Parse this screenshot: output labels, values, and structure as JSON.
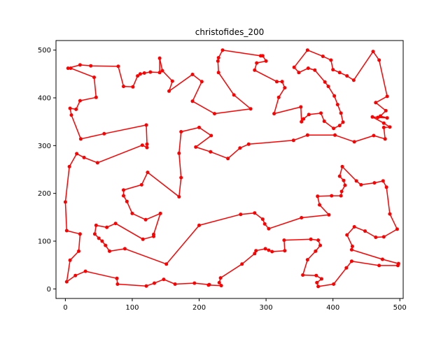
{
  "chart_data": {
    "type": "line",
    "title": "christofides_200",
    "xlabel": "",
    "ylabel": "",
    "xlim": [
      -14,
      505
    ],
    "ylim": [
      -20,
      520
    ],
    "x_ticks": [
      0,
      100,
      200,
      300,
      400,
      500
    ],
    "y_ticks": [
      0,
      100,
      200,
      300,
      400,
      500
    ],
    "grid": false,
    "series": [
      {
        "color": "#ff0000",
        "marker": "circle",
        "closed": true,
        "points": [
          [
            4,
            462
          ],
          [
            22,
            469
          ],
          [
            38,
            467
          ],
          [
            79,
            466
          ],
          [
            87,
            424
          ],
          [
            101,
            423
          ],
          [
            108,
            446
          ],
          [
            112,
            450
          ],
          [
            118,
            452
          ],
          [
            127,
            454
          ],
          [
            141,
            453
          ],
          [
            141,
            483
          ],
          [
            145,
            457
          ],
          [
            160,
            435
          ],
          [
            155,
            414
          ],
          [
            190,
            449
          ],
          [
            204,
            434
          ],
          [
            190,
            393
          ],
          [
            223,
            367
          ],
          [
            277,
            377
          ],
          [
            252,
            406
          ],
          [
            229,
            453
          ],
          [
            228,
            477
          ],
          [
            229,
            484
          ],
          [
            235,
            500
          ],
          [
            292,
            488
          ],
          [
            295,
            488
          ],
          [
            300,
            477
          ],
          [
            286,
            473
          ],
          [
            283,
            458
          ],
          [
            316,
            434
          ],
          [
            324,
            434
          ],
          [
            328,
            421
          ],
          [
            319,
            401
          ],
          [
            312,
            367
          ],
          [
            352,
            381
          ],
          [
            353,
            350
          ],
          [
            356,
            356
          ],
          [
            364,
            365
          ],
          [
            382,
            368
          ],
          [
            387,
            351
          ],
          [
            401,
            336
          ],
          [
            410,
            342
          ],
          [
            415,
            349
          ],
          [
            412,
            368
          ],
          [
            407,
            386
          ],
          [
            402,
            404
          ],
          [
            393,
            424
          ],
          [
            388,
            433
          ],
          [
            373,
            458
          ],
          [
            363,
            462
          ],
          [
            349,
            453
          ],
          [
            342,
            464
          ],
          [
            362,
            500
          ],
          [
            385,
            487
          ],
          [
            397,
            479
          ],
          [
            400,
            459
          ],
          [
            410,
            453
          ],
          [
            421,
            446
          ],
          [
            431,
            437
          ],
          [
            460,
            497
          ],
          [
            469,
            479
          ],
          [
            481,
            403
          ],
          [
            464,
            390
          ],
          [
            479,
            373
          ],
          [
            471,
            362
          ],
          [
            481,
            358
          ],
          [
            467,
            359
          ],
          [
            459,
            360
          ],
          [
            476,
            347
          ],
          [
            485,
            339
          ],
          [
            476,
            338
          ],
          [
            478,
            314
          ],
          [
            461,
            321
          ],
          [
            432,
            308
          ],
          [
            403,
            322
          ],
          [
            362,
            322
          ],
          [
            341,
            311
          ],
          [
            274,
            303
          ],
          [
            261,
            295
          ],
          [
            243,
            273
          ],
          [
            217,
            287
          ],
          [
            195,
            297
          ],
          [
            218,
            321
          ],
          [
            200,
            338
          ],
          [
            173,
            329
          ],
          [
            170,
            284
          ],
          [
            173,
            233
          ],
          [
            170,
            193
          ],
          [
            123,
            244
          ],
          [
            114,
            218
          ],
          [
            87,
            207
          ],
          [
            87,
            195
          ],
          [
            92,
            183
          ],
          [
            100,
            158
          ],
          [
            120,
            145
          ],
          [
            142,
            158
          ],
          [
            132,
            114
          ],
          [
            132,
            110
          ],
          [
            116,
            104
          ],
          [
            75,
            137
          ],
          [
            62,
            129
          ],
          [
            46,
            133
          ],
          [
            44,
            115
          ],
          [
            50,
            106
          ],
          [
            55,
            100
          ],
          [
            60,
            91
          ],
          [
            66,
            79
          ],
          [
            89,
            84
          ],
          [
            151,
            52
          ],
          [
            200,
            133
          ],
          [
            262,
            156
          ],
          [
            283,
            159
          ],
          [
            295,
            146
          ],
          [
            298,
            136
          ],
          [
            304,
            126
          ],
          [
            353,
            149
          ],
          [
            394,
            155
          ],
          [
            380,
            176
          ],
          [
            377,
            194
          ],
          [
            398,
            195
          ],
          [
            412,
            195
          ],
          [
            413,
            204
          ],
          [
            418,
            217
          ],
          [
            416,
            227
          ],
          [
            410,
            236
          ],
          [
            414,
            256
          ],
          [
            435,
            226
          ],
          [
            442,
            218
          ],
          [
            462,
            222
          ],
          [
            475,
            226
          ],
          [
            480,
            213
          ],
          [
            485,
            157
          ],
          [
            496,
            125
          ],
          [
            476,
            109
          ],
          [
            464,
            108
          ],
          [
            448,
            121
          ],
          [
            432,
            130
          ],
          [
            421,
            113
          ],
          [
            429,
            89
          ],
          [
            428,
            82
          ],
          [
            474,
            62
          ],
          [
            498,
            53
          ],
          [
            497,
            49
          ],
          [
            469,
            49
          ],
          [
            428,
            58
          ],
          [
            420,
            44
          ],
          [
            401,
            10
          ],
          [
            378,
            5
          ],
          [
            376,
            13
          ],
          [
            383,
            21
          ],
          [
            375,
            28
          ],
          [
            355,
            29
          ],
          [
            362,
            61
          ],
          [
            374,
            79
          ],
          [
            381,
            91
          ],
          [
            378,
            102
          ],
          [
            367,
            104
          ],
          [
            327,
            102
          ],
          [
            328,
            80
          ],
          [
            309,
            78
          ],
          [
            304,
            81
          ],
          [
            299,
            84
          ],
          [
            285,
            80
          ],
          [
            283,
            74
          ],
          [
            264,
            52
          ],
          [
            232,
            23
          ],
          [
            230,
            13
          ],
          [
            233,
            7
          ],
          [
            214,
            8
          ],
          [
            215,
            9
          ],
          [
            193,
            12
          ],
          [
            164,
            10
          ],
          [
            147,
            20
          ],
          [
            133,
            12
          ],
          [
            121,
            6
          ],
          [
            78,
            10
          ],
          [
            77,
            22
          ],
          [
            30,
            37
          ],
          [
            15,
            28
          ],
          [
            2,
            15
          ],
          [
            7,
            60
          ],
          [
            20,
            79
          ],
          [
            22,
            115
          ],
          [
            2,
            122
          ],
          [
            0,
            182
          ],
          [
            6,
            256
          ],
          [
            17,
            283
          ],
          [
            28,
            275
          ],
          [
            48,
            264
          ],
          [
            115,
            301
          ],
          [
            122,
            296
          ],
          [
            122,
            303
          ],
          [
            121,
            343
          ],
          [
            58,
            325
          ],
          [
            23,
            314
          ],
          [
            9,
            364
          ],
          [
            7,
            378
          ],
          [
            16,
            376
          ],
          [
            22,
            394
          ],
          [
            46,
            401
          ],
          [
            43,
            443
          ],
          [
            8,
            462
          ]
        ]
      }
    ]
  }
}
